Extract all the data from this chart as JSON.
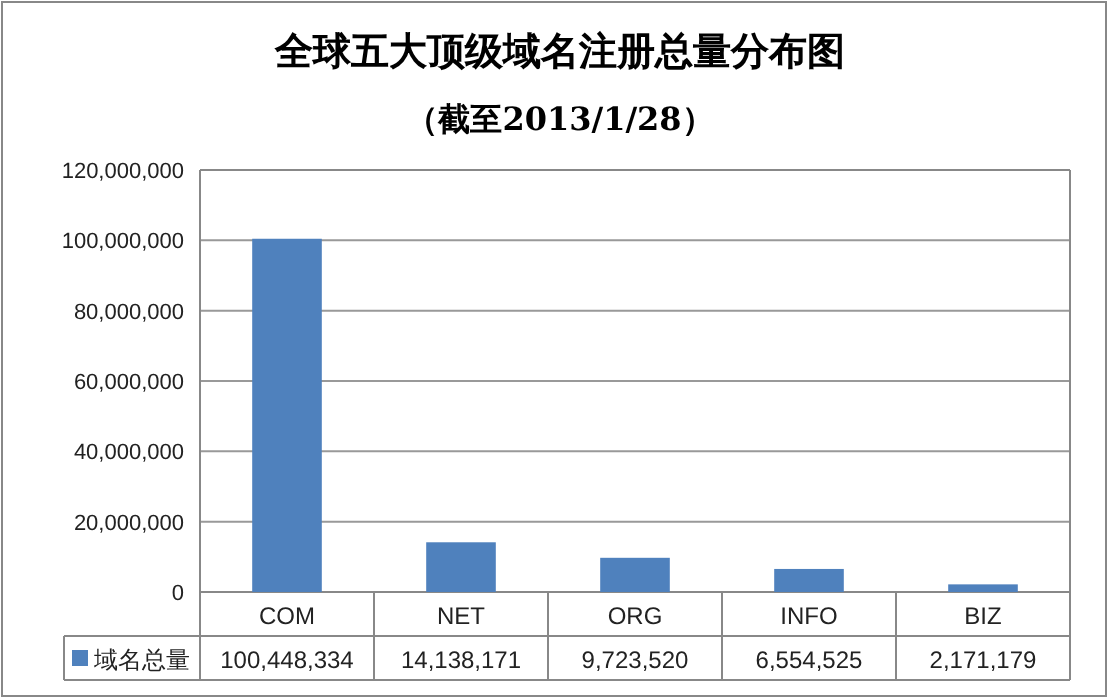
{
  "chart_data": {
    "type": "bar",
    "title": "全球五大顶级域名注册总量分布图",
    "subtitle": "（截至2013/1/28）",
    "categories": [
      "COM",
      "NET",
      "ORG",
      "INFO",
      "BIZ"
    ],
    "series": [
      {
        "name": "域名总量",
        "color": "#4f81bd",
        "values": [
          100448334,
          14138171,
          9723520,
          6554525,
          2171179
        ],
        "value_labels": [
          "100,448,334",
          "14,138,171",
          "9,723,520",
          "6,554,525",
          "2,171,179"
        ]
      }
    ],
    "ylim": [
      0,
      120000000
    ],
    "yticks": [
      0,
      {
        "value": 20000000,
        "label": "20,000,000"
      },
      {
        "value": 40000000,
        "label": "40,000,000"
      },
      {
        "value": 60000000,
        "label": "60,000,000"
      },
      {
        "value": 80000000,
        "label": "80,000,000"
      },
      {
        "value": 100000000,
        "label": "100,000,000"
      },
      {
        "value": 120000000,
        "label": "120,000,000"
      }
    ],
    "grid": "y",
    "legend": "bottom"
  }
}
